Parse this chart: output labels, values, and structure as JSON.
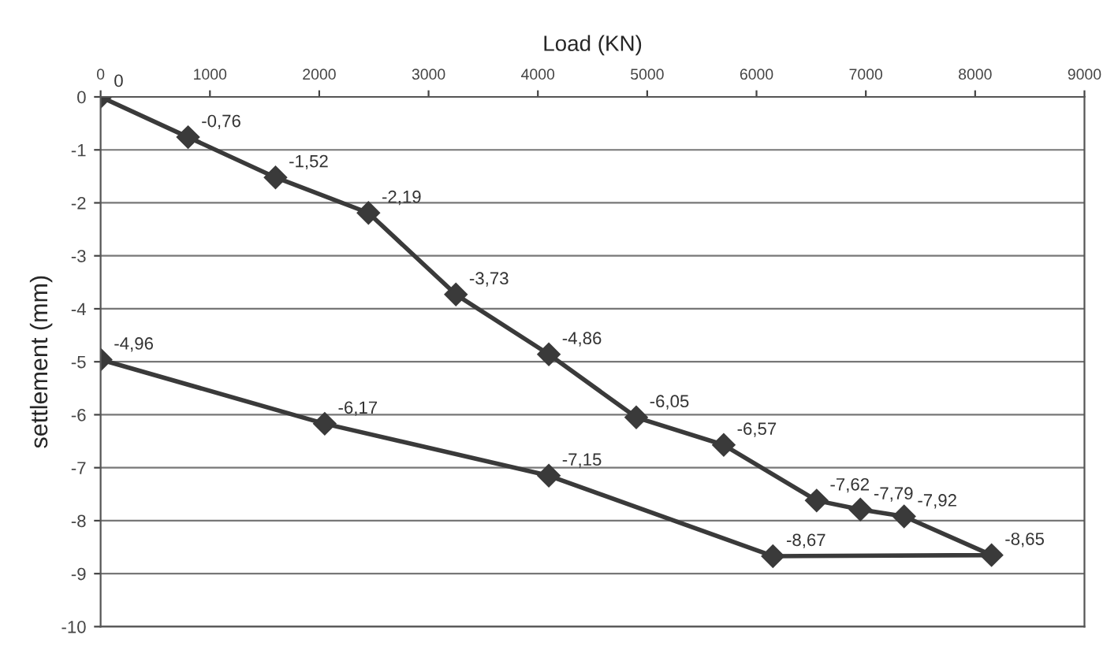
{
  "chart_data": {
    "type": "line",
    "xlabel": "Load (KN)",
    "ylabel": "settlement (mm)",
    "x": [
      0,
      800,
      1600,
      2450,
      3250,
      4100,
      4900,
      5700,
      6550,
      6950,
      7350,
      8150,
      6150,
      4100,
      2050,
      0
    ],
    "series": [
      {
        "color": "#3a3a3a",
        "values": [
          0,
          -0.76,
          -1.52,
          -2.19,
          -3.73,
          -4.86,
          -6.05,
          -6.57,
          -7.62,
          -7.79,
          -7.92,
          -8.65,
          -8.67,
          -7.15,
          -6.17,
          -4.96
        ],
        "value_labels": [
          "0",
          "-0,76",
          "-1,52",
          "-2,19",
          "-3,73",
          "-4,86",
          "-6,05",
          "-6,57",
          "-7,62",
          "-7,79",
          "-7,92",
          "-8,65",
          "-8,67",
          "-7,15",
          "-6,17",
          "-4,96"
        ]
      }
    ],
    "xlim": [
      0,
      9000
    ],
    "xticks": [
      0,
      1000,
      2000,
      3000,
      4000,
      5000,
      6000,
      7000,
      8000,
      9000
    ],
    "ylim": [
      -10,
      0
    ],
    "yticks": [
      -10,
      -9,
      -8,
      -7,
      -6,
      -5,
      -4,
      -3,
      -2,
      -1,
      0
    ],
    "grid": "y",
    "marker": "diamond",
    "line_style": "solid"
  }
}
